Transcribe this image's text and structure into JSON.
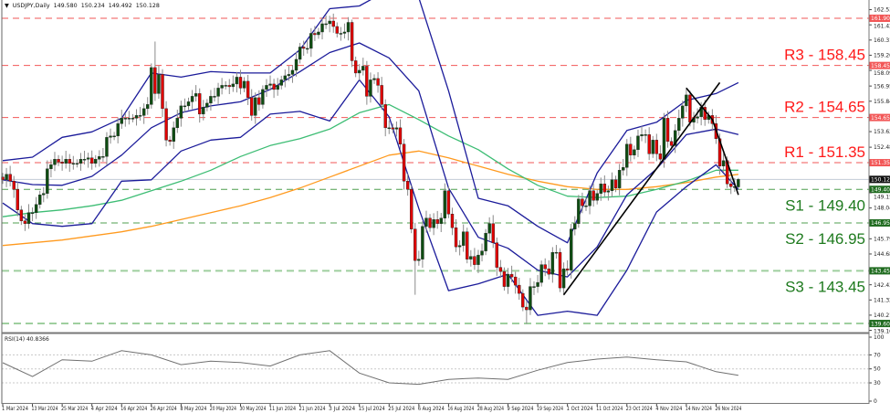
{
  "header": {
    "collapse_icon": "triangle-down-icon",
    "symbol": "USDJPY,Daily",
    "open": "149.580",
    "high": "150.234",
    "low": "149.492",
    "close": "150.128"
  },
  "chart_data": [
    {
      "type": "candlestick",
      "title": "",
      "x_labels": [
        "1 Mar 2024",
        "13 Mar 2024",
        "25 Mar 2024",
        "4 Apr 2024",
        "16 Apr 2024",
        "26 Apr 2024",
        "8 May 2024",
        "20 May 2024",
        "30 May 2024",
        "11 Jun 2024",
        "21 Jun 2024",
        "3 Jul 2024",
        "15 Jul 2024",
        "25 Jul 2024",
        "6 Aug 2024",
        "16 Aug 2024",
        "28 Aug 2024",
        "9 Sep 2024",
        "19 Sep 2024",
        "1 Oct 2024",
        "11 Oct 2024",
        "23 Oct 2024",
        "4 Nov 2024",
        "14 Nov 2024",
        "26 Nov 2024"
      ],
      "y_tick_labels": [
        "162.530",
        "161.420",
        "160.310",
        "159.200",
        "158.090",
        "156.950",
        "155.840",
        "153.620",
        "152.480",
        "149.150",
        "148.040",
        "145.790",
        "144.680",
        "142.430",
        "141.320",
        "140.210",
        "139.100"
      ],
      "ylim": [
        139.1,
        162.53
      ],
      "closes": [
        150.1,
        150.5,
        150.0,
        149.4,
        147.9,
        147.1,
        146.9,
        147.7,
        147.7,
        148.3,
        149.0,
        149.1,
        150.9,
        151.2,
        151.6,
        151.4,
        151.3,
        151.6,
        151.3,
        151.3,
        151.3,
        151.6,
        151.6,
        151.7,
        151.3,
        151.6,
        151.8,
        151.8,
        153.2,
        153.3,
        153.3,
        154.2,
        154.6,
        154.6,
        154.6,
        154.6,
        154.8,
        154.8,
        155.3,
        155.6,
        158.3,
        156.4,
        157.8,
        155.3,
        153.0,
        152.9,
        153.9,
        154.6,
        155.5,
        155.5,
        155.8,
        156.2,
        156.4,
        154.9,
        155.4,
        155.7,
        156.2,
        156.2,
        156.8,
        157.0,
        157.0,
        156.9,
        157.1,
        157.6,
        156.8,
        157.3,
        156.1,
        154.8,
        156.1,
        155.6,
        156.7,
        157.0,
        157.1,
        156.7,
        157.0,
        157.4,
        157.7,
        157.8,
        158.1,
        158.9,
        159.8,
        159.7,
        159.7,
        160.8,
        160.7,
        160.9,
        161.5,
        161.5,
        161.7,
        161.3,
        160.8,
        160.8,
        160.9,
        161.6,
        158.8,
        157.9,
        158.1,
        158.4,
        156.2,
        157.4,
        157.5,
        157.0,
        155.6,
        153.9,
        153.9,
        153.8,
        153.9,
        152.7,
        150.0,
        149.4,
        146.5,
        144.2,
        144.3,
        146.7,
        147.3,
        146.6,
        147.2,
        146.9,
        147.3,
        149.3,
        147.6,
        146.6,
        145.2,
        145.3,
        146.3,
        144.3,
        144.5,
        143.9,
        144.6,
        144.9,
        146.2,
        146.9,
        145.5,
        143.7,
        143.4,
        142.3,
        143.2,
        143.0,
        142.4,
        141.8,
        140.8,
        140.6,
        142.3,
        142.3,
        142.6,
        143.9,
        143.6,
        143.2,
        144.8,
        144.8,
        142.2,
        143.6,
        143.5,
        146.5,
        146.9,
        148.7,
        148.2,
        148.2,
        149.3,
        148.6,
        149.1,
        149.8,
        149.2,
        149.3,
        150.1,
        149.5,
        150.8,
        151.0,
        152.7,
        151.9,
        152.3,
        153.3,
        153.4,
        153.4,
        152.0,
        153.0,
        152.0,
        151.6,
        154.6,
        152.9,
        152.6,
        153.7,
        154.6,
        155.5,
        156.3,
        154.3,
        154.6,
        154.7,
        155.4,
        154.5,
        154.8,
        154.2,
        153.1,
        151.1,
        151.5,
        149.8,
        149.6,
        149.6,
        150.128
      ],
      "last_bar": {
        "open": 149.58,
        "high": 150.234,
        "low": 149.492,
        "close": 150.128
      },
      "notable_extremes": [
        {
          "date": "29 Apr 2024",
          "high": 160.2
        },
        {
          "date": "11 Jul 2024",
          "high": 161.8
        },
        {
          "date": "5 Aug 2024",
          "low": 141.7
        },
        {
          "date": "16 Sep 2024",
          "low": 139.58
        }
      ],
      "indicators_sampled_at_x_labels_and_last_bar": {
        "bollinger_upper": [
          151.5,
          151.75,
          153.2,
          153.6,
          154.6,
          157.9,
          157.6,
          158.0,
          157.9,
          157.9,
          159.6,
          162.6,
          162.8,
          164.0,
          163.4,
          156.6,
          148.75,
          148.2,
          146.7,
          145.5,
          150.6,
          153.7,
          154.3,
          155.9,
          156.4,
          157.2
        ],
        "bollinger_middle": [
          150.1,
          149.75,
          149.7,
          150.35,
          151.9,
          153.9,
          155.0,
          155.5,
          155.8,
          156.7,
          158.0,
          159.4,
          160.1,
          159.0,
          156.6,
          149.5,
          145.9,
          145.1,
          143.5,
          143.0,
          145.2,
          149.0,
          150.9,
          153.4,
          153.8,
          153.4
        ],
        "bollinger_lower": [
          148.4,
          146.9,
          146.7,
          146.9,
          150.0,
          150.1,
          152.2,
          153.0,
          153.2,
          154.9,
          155.1,
          154.4,
          157.4,
          154.7,
          148.0,
          142.0,
          142.5,
          143.2,
          140.2,
          140.5,
          140.2,
          143.5,
          147.75,
          149.6,
          151.2,
          149.4
        ],
        "ma_green": [
          147.4,
          147.7,
          147.9,
          148.2,
          148.6,
          149.3,
          150.0,
          150.8,
          151.8,
          152.6,
          153.1,
          153.8,
          155.0,
          155.6,
          154.5,
          153.3,
          152.3,
          150.9,
          149.7,
          148.9,
          148.8,
          148.9,
          149.4,
          150.0,
          150.8,
          150.8
        ],
        "ma_orange": [
          145.3,
          145.5,
          145.7,
          146.0,
          146.3,
          146.7,
          147.2,
          147.7,
          148.2,
          148.8,
          149.5,
          150.3,
          151.1,
          151.9,
          152.2,
          151.7,
          151.1,
          150.5,
          150.0,
          149.6,
          149.4,
          149.4,
          149.6,
          149.9,
          150.3,
          150.5
        ]
      },
      "trendlines": [
        {
          "points": [
            [
              "30 Sep 2024",
              141.7
            ],
            [
              "27 Nov 2024",
              157.2
            ]
          ]
        },
        {
          "points": [
            [
              "14 Nov 2024",
              156.8
            ],
            [
              "25 Nov 2024",
              154.5
            ],
            [
              "29 Nov 2024",
              151.4
            ],
            [
              "4 Dec 2024",
              149.0
            ]
          ]
        }
      ],
      "levels": [
        {
          "value": 161.9,
          "tag": "161.900",
          "label": "",
          "kind": "resistance"
        },
        {
          "value": 158.45,
          "tag": "158.450",
          "label": "R3 - 158.45",
          "kind": "resistance"
        },
        {
          "value": 154.65,
          "tag": "154.650",
          "label": "R2 - 154.65",
          "kind": "resistance"
        },
        {
          "value": 151.35,
          "tag": "151.350",
          "label": "R1 - 151.35",
          "kind": "resistance"
        },
        {
          "value": 149.4,
          "tag": "149.400",
          "label": "S1 - 149.40",
          "kind": "support"
        },
        {
          "value": 146.95,
          "tag": "146.950",
          "label": "S2 - 146.95",
          "kind": "support"
        },
        {
          "value": 143.45,
          "tag": "143.450",
          "label": "S3 - 143.45",
          "kind": "support-strong"
        },
        {
          "value": 139.6,
          "tag": "139.600",
          "label": "",
          "kind": "support-strong"
        }
      ],
      "current_price": {
        "value": 150.128,
        "tag": "150.128"
      }
    },
    {
      "type": "line",
      "title": "RSI(14) 40.8366",
      "ylim": [
        0,
        100
      ],
      "y_tick_labels": [
        "100",
        "70",
        "50",
        "30",
        "0"
      ],
      "gridlines": [
        70,
        50,
        30
      ],
      "values_sampled_at_x_labels_and_last_bar": [
        58.7,
        39,
        63,
        61,
        76,
        70,
        56,
        61,
        59,
        54,
        70,
        76,
        44,
        30,
        28,
        35,
        37,
        35,
        48,
        59,
        64,
        67,
        63,
        60,
        46,
        40.84
      ]
    }
  ],
  "colors": {
    "resistance": "#f25757",
    "resistance_text": "#ff1a1a",
    "support": "#4f9f4f",
    "support_strong": "#9fcf9f",
    "support_text": "#1e7a1e",
    "support_tag": "#1f6b1f",
    "bull": "#0e4d12",
    "bear": "#e00000",
    "band": "#1b1b9a",
    "ma_green": "#3dbd74",
    "ma_orange": "#ff9a1f",
    "rsi": "#707070",
    "current_price_line": "#c3cbd6"
  }
}
